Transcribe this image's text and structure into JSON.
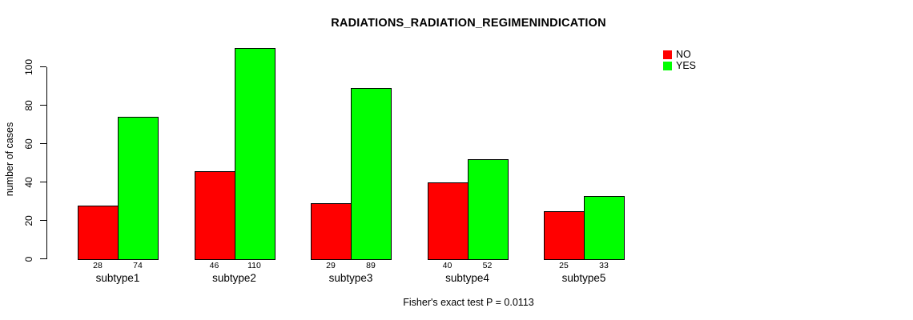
{
  "chart_data": {
    "type": "bar",
    "title": "RADIATIONS_RADIATION_REGIMENINDICATION",
    "ylabel": "number of cases",
    "xlabel": "",
    "categories": [
      "subtype1",
      "subtype2",
      "subtype3",
      "subtype4",
      "subtype5"
    ],
    "series": [
      {
        "name": "NO",
        "color": "#ff0000",
        "values": [
          28,
          46,
          29,
          40,
          25
        ]
      },
      {
        "name": "YES",
        "color": "#00ff00",
        "values": [
          74,
          110,
          89,
          52,
          33
        ]
      }
    ],
    "yticks": [
      0,
      20,
      40,
      60,
      80,
      100
    ],
    "ylim": [
      0,
      110
    ],
    "grid": false,
    "legend_position": "top-right",
    "bar_border_color": "#000000",
    "value_labels_shown": true,
    "annotation": "Fisher's exact test P = 0.0113"
  }
}
